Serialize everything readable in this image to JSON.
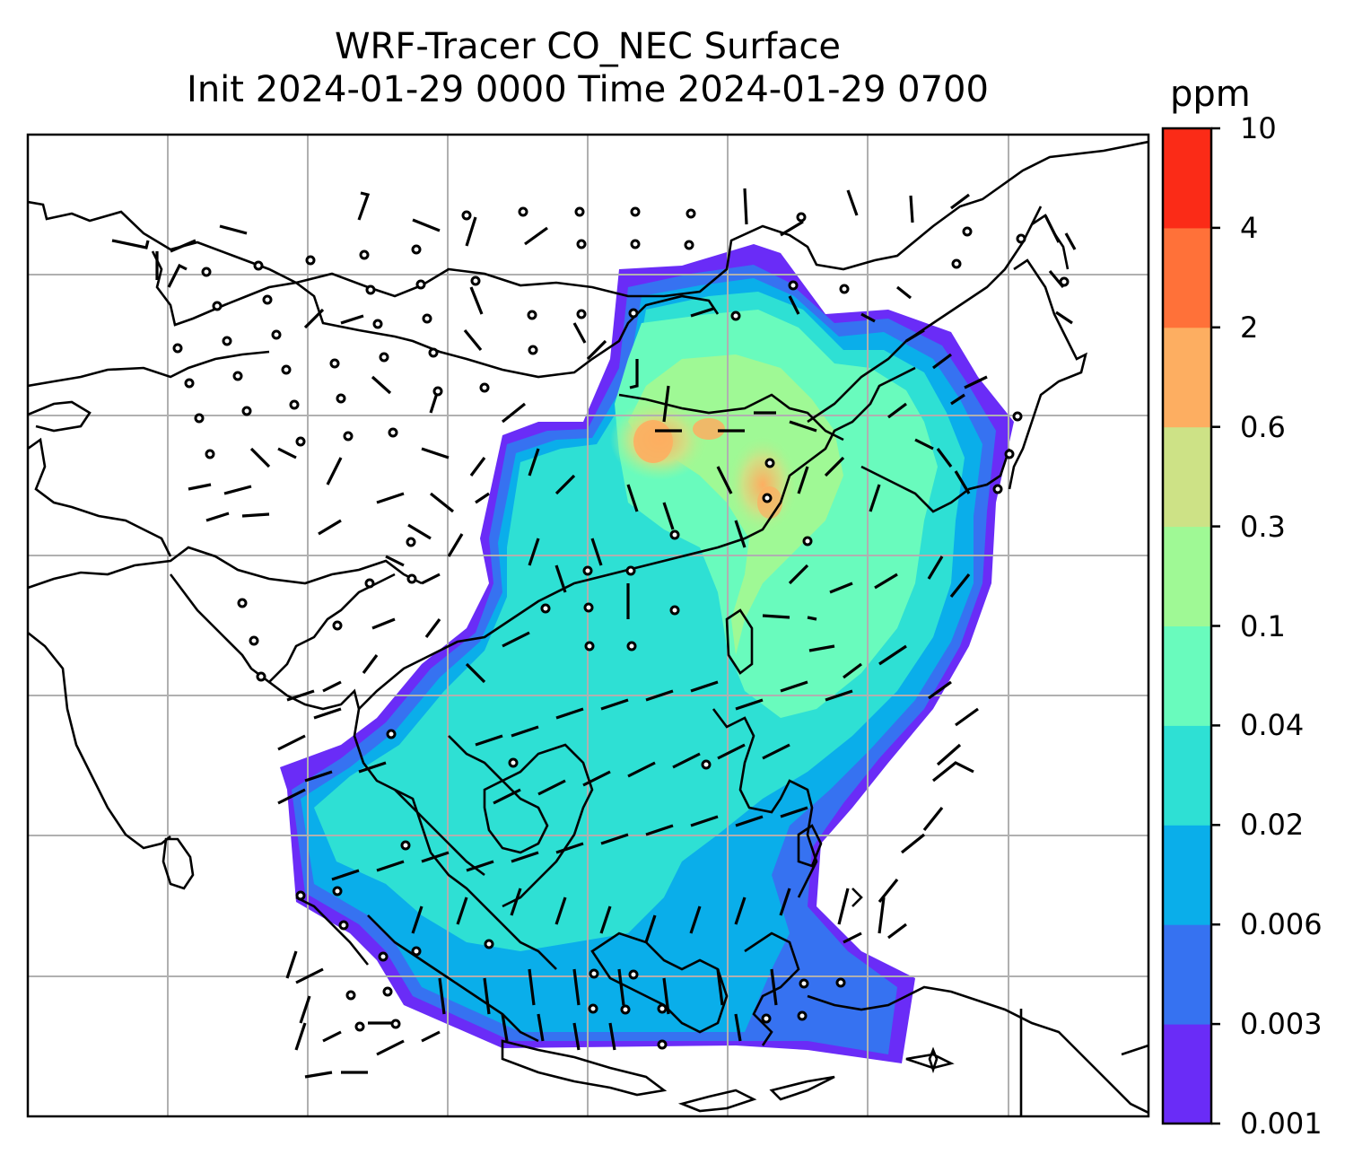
{
  "title_line1": "WRF-Tracer CO_NEC Surface",
  "title_line2": "Init 2024-01-29 0000 Time 2024-01-29 0700",
  "colorbar": {
    "unit": "ppm",
    "levels": [
      "0.001",
      "0.003",
      "0.006",
      "0.02",
      "0.04",
      "0.1",
      "0.3",
      "0.6",
      "2",
      "4",
      "10"
    ],
    "colors": [
      "#6a2cf7",
      "#3672f1",
      "#0aaeea",
      "#2ee0d4",
      "#69fbbd",
      "#9ff995",
      "#cde286",
      "#fdae61",
      "#ff7139",
      "#fb2b17"
    ]
  },
  "map": {
    "field": "CO_NEC tracer concentration (surface)",
    "wind_symbols": "wind barbs, circles indicate calm",
    "gridlines": true
  }
}
